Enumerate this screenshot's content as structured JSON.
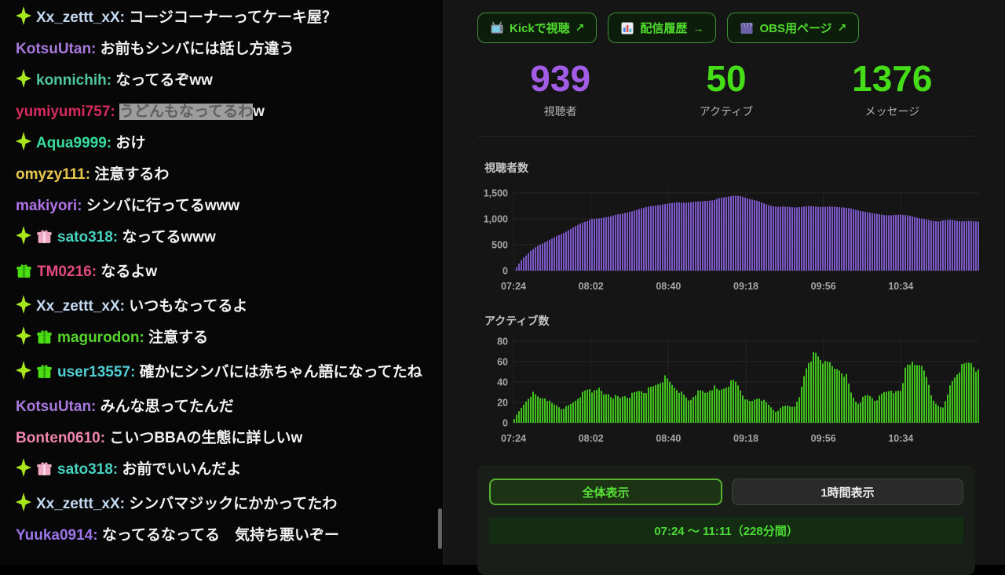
{
  "chat": {
    "messages": [
      {
        "badges": [
          "diamond"
        ],
        "name": "Xx_zettt_xX",
        "color": "#c3d9f2",
        "text": "コージコーナーってケーキ屋？"
      },
      {
        "badges": [],
        "name": "KotsuUtan",
        "color": "#a97ade",
        "text": "お前もシンバには話し方違う"
      },
      {
        "badges": [
          "diamond"
        ],
        "name": "konnichih",
        "color": "#4fc7a2",
        "text": "なってるぞww"
      },
      {
        "badges": [],
        "name": "yumiyumi757",
        "color": "#d62a5e",
        "selected": "うどんもなってるわ",
        "text": "w"
      },
      {
        "badges": [
          "diamond"
        ],
        "name": "Aqua9999",
        "color": "#37dc9e",
        "text": "おけ"
      },
      {
        "badges": [],
        "name": "omyzy111",
        "color": "#e9c94d",
        "text": "注意するわ"
      },
      {
        "badges": [],
        "name": "makiyori",
        "color": "#b273e8",
        "text": "シンバに行ってるwww"
      },
      {
        "badges": [
          "diamond",
          "gift-pink"
        ],
        "name": "sato318",
        "color": "#47d1c0",
        "text": "なってるwww"
      },
      {
        "badges": [
          "gift-green"
        ],
        "name": "TM0216",
        "color": "#e44a82",
        "text": "なるよw"
      },
      {
        "badges": [
          "diamond"
        ],
        "name": "Xx_zettt_xX",
        "color": "#c3d9f2",
        "text": "いつもなってるよ"
      },
      {
        "badges": [
          "diamond",
          "gift-green"
        ],
        "name": "magurodon",
        "color": "#55d429",
        "text": "注意する"
      },
      {
        "badges": [
          "diamond",
          "gift-green"
        ],
        "name": "user13557",
        "color": "#4fd0d4",
        "text": "確かにシンバには赤ちゃん語になってたね"
      },
      {
        "badges": [],
        "name": "KotsuUtan",
        "color": "#a97ade",
        "text": "みんな思ってたんだ"
      },
      {
        "badges": [],
        "name": "Bonten0610",
        "color": "#ef84ad",
        "text": "こいつBBAの生態に詳しいw"
      },
      {
        "badges": [
          "diamond",
          "gift-pink"
        ],
        "name": "sato318",
        "color": "#47d1c0",
        "text": "お前でいいんだよ"
      },
      {
        "badges": [
          "diamond"
        ],
        "name": "Xx_zettt_xX",
        "color": "#c3d9f2",
        "text": "シンバマジックにかかってたわ"
      },
      {
        "badges": [],
        "name": "Yuuka0914",
        "color": "#9d74e8",
        "text": "なってるなってる　気持ち悪いぞー"
      }
    ],
    "badge_colors": {
      "diamond": "#a6e71b",
      "gift_pink": "#f2a9c6",
      "gift_green": "#4ae014"
    }
  },
  "header_buttons": [
    {
      "icon": "tv-icon",
      "label": "Kickで視聴",
      "arrow": "↗"
    },
    {
      "icon": "bar-chart-icon",
      "label": "配信履歴",
      "arrow": "→"
    },
    {
      "icon": "clapperboard-icon",
      "label": "OBS用ページ",
      "arrow": "↗"
    }
  ],
  "stats": [
    {
      "value": "939",
      "label": "視聴者",
      "color": "#a25ce6"
    },
    {
      "value": "50",
      "label": "アクティブ",
      "color": "#44dd18"
    },
    {
      "value": "1376",
      "label": "メッセージ",
      "color": "#44dd18"
    }
  ],
  "chart_data": [
    {
      "type": "bar",
      "title": "視聴者数",
      "bar_color": "#7c57c8",
      "ylim": [
        0,
        1500
      ],
      "yticks": [
        0,
        500,
        1000,
        1500
      ],
      "ytick_labels": [
        "0",
        "500",
        "1,000",
        "1,500"
      ],
      "xtick_labels": [
        "07:24",
        "08:02",
        "08:40",
        "09:18",
        "09:56",
        "10:34"
      ],
      "xtick_minutes": [
        0,
        38,
        76,
        114,
        152,
        190
      ],
      "x_total_minutes": 228,
      "points": [
        [
          0,
          0
        ],
        [
          2,
          120
        ],
        [
          4,
          230
        ],
        [
          6,
          300
        ],
        [
          8,
          380
        ],
        [
          10,
          440
        ],
        [
          12,
          490
        ],
        [
          15,
          545
        ],
        [
          18,
          610
        ],
        [
          21,
          670
        ],
        [
          24,
          720
        ],
        [
          27,
          790
        ],
        [
          30,
          860
        ],
        [
          33,
          920
        ],
        [
          36,
          960
        ],
        [
          38,
          1000
        ],
        [
          42,
          1010
        ],
        [
          46,
          1040
        ],
        [
          50,
          1080
        ],
        [
          54,
          1110
        ],
        [
          58,
          1150
        ],
        [
          62,
          1200
        ],
        [
          66,
          1240
        ],
        [
          70,
          1260
        ],
        [
          73,
          1280
        ],
        [
          76,
          1300
        ],
        [
          80,
          1320
        ],
        [
          84,
          1310
        ],
        [
          88,
          1330
        ],
        [
          92,
          1340
        ],
        [
          95,
          1350
        ],
        [
          98,
          1360
        ],
        [
          100,
          1400
        ],
        [
          102,
          1410
        ],
        [
          105,
          1430
        ],
        [
          108,
          1450
        ],
        [
          111,
          1440
        ],
        [
          114,
          1400
        ],
        [
          117,
          1370
        ],
        [
          120,
          1340
        ],
        [
          123,
          1290
        ],
        [
          126,
          1250
        ],
        [
          129,
          1230
        ],
        [
          132,
          1240
        ],
        [
          135,
          1230
        ],
        [
          138,
          1220
        ],
        [
          141,
          1230
        ],
        [
          144,
          1250
        ],
        [
          147,
          1240
        ],
        [
          150,
          1230
        ],
        [
          152,
          1230
        ],
        [
          155,
          1240
        ],
        [
          158,
          1230
        ],
        [
          161,
          1220
        ],
        [
          164,
          1210
        ],
        [
          167,
          1180
        ],
        [
          170,
          1150
        ],
        [
          173,
          1130
        ],
        [
          176,
          1110
        ],
        [
          179,
          1090
        ],
        [
          182,
          1070
        ],
        [
          185,
          1070
        ],
        [
          188,
          1080
        ],
        [
          190,
          1080
        ],
        [
          193,
          1070
        ],
        [
          196,
          1040
        ],
        [
          199,
          1010
        ],
        [
          202,
          990
        ],
        [
          205,
          960
        ],
        [
          208,
          950
        ],
        [
          211,
          975
        ],
        [
          214,
          985
        ],
        [
          217,
          960
        ],
        [
          220,
          950
        ],
        [
          223,
          960
        ],
        [
          226,
          950
        ],
        [
          228,
          945
        ]
      ]
    },
    {
      "type": "bar",
      "title": "アクティブ数",
      "bar_color": "#41c11e",
      "ylim": [
        0,
        80
      ],
      "yticks": [
        0,
        20,
        40,
        60,
        80
      ],
      "ytick_labels": [
        "0",
        "20",
        "40",
        "60",
        "80"
      ],
      "xtick_labels": [
        "07:24",
        "08:02",
        "08:40",
        "09:18",
        "09:56",
        "10:34"
      ],
      "xtick_minutes": [
        0,
        38,
        76,
        114,
        152,
        190
      ],
      "x_total_minutes": 228,
      "points": [
        [
          0,
          4
        ],
        [
          2,
          10
        ],
        [
          4,
          16
        ],
        [
          6,
          22
        ],
        [
          8,
          27
        ],
        [
          9,
          29
        ],
        [
          11,
          26
        ],
        [
          13,
          24
        ],
        [
          15,
          25
        ],
        [
          17,
          21
        ],
        [
          19,
          18
        ],
        [
          21,
          17
        ],
        [
          23,
          14
        ],
        [
          25,
          15
        ],
        [
          27,
          17
        ],
        [
          29,
          20
        ],
        [
          31,
          24
        ],
        [
          33,
          28
        ],
        [
          35,
          31
        ],
        [
          37,
          33
        ],
        [
          38,
          30
        ],
        [
          40,
          35
        ],
        [
          42,
          32
        ],
        [
          44,
          27
        ],
        [
          46,
          29
        ],
        [
          48,
          25
        ],
        [
          50,
          26
        ],
        [
          52,
          24
        ],
        [
          54,
          27
        ],
        [
          56,
          25
        ],
        [
          58,
          28
        ],
        [
          60,
          30
        ],
        [
          62,
          32
        ],
        [
          64,
          30
        ],
        [
          66,
          33
        ],
        [
          68,
          35
        ],
        [
          70,
          38
        ],
        [
          72,
          41
        ],
        [
          74,
          44
        ],
        [
          76,
          40
        ],
        [
          78,
          36
        ],
        [
          80,
          33
        ],
        [
          82,
          29
        ],
        [
          84,
          25
        ],
        [
          86,
          21
        ],
        [
          88,
          27
        ],
        [
          90,
          30
        ],
        [
          92,
          31
        ],
        [
          94,
          29
        ],
        [
          96,
          33
        ],
        [
          98,
          35
        ],
        [
          100,
          31
        ],
        [
          102,
          33
        ],
        [
          104,
          36
        ],
        [
          106,
          39
        ],
        [
          108,
          41
        ],
        [
          110,
          36
        ],
        [
          112,
          28
        ],
        [
          114,
          22
        ],
        [
          116,
          20
        ],
        [
          118,
          23
        ],
        [
          120,
          25
        ],
        [
          122,
          22
        ],
        [
          124,
          19
        ],
        [
          126,
          15
        ],
        [
          128,
          11
        ],
        [
          130,
          13
        ],
        [
          132,
          16
        ],
        [
          134,
          17
        ],
        [
          136,
          16
        ],
        [
          138,
          17
        ],
        [
          140,
          25
        ],
        [
          142,
          45
        ],
        [
          144,
          60
        ],
        [
          146,
          65
        ],
        [
          148,
          66
        ],
        [
          150,
          62
        ],
        [
          152,
          58
        ],
        [
          153,
          68
        ],
        [
          155,
          55
        ],
        [
          157,
          52
        ],
        [
          159,
          53
        ],
        [
          161,
          50
        ],
        [
          163,
          45
        ],
        [
          165,
          30
        ],
        [
          167,
          22
        ],
        [
          169,
          19
        ],
        [
          171,
          24
        ],
        [
          173,
          27
        ],
        [
          175,
          26
        ],
        [
          177,
          22
        ],
        [
          179,
          25
        ],
        [
          181,
          29
        ],
        [
          183,
          31
        ],
        [
          185,
          33
        ],
        [
          187,
          29
        ],
        [
          189,
          31
        ],
        [
          190,
          30
        ],
        [
          192,
          58
        ],
        [
          194,
          61
        ],
        [
          196,
          54
        ],
        [
          198,
          56
        ],
        [
          200,
          57
        ],
        [
          202,
          50
        ],
        [
          204,
          28
        ],
        [
          206,
          20
        ],
        [
          208,
          17
        ],
        [
          210,
          15
        ],
        [
          212,
          22
        ],
        [
          214,
          38
        ],
        [
          216,
          45
        ],
        [
          218,
          52
        ],
        [
          220,
          55
        ],
        [
          222,
          58
        ],
        [
          224,
          60
        ],
        [
          226,
          55
        ],
        [
          228,
          48
        ]
      ]
    }
  ],
  "footer": {
    "view_all_label": "全体表示",
    "view_hour_label": "1時間表示",
    "range_label": "07:24 ～ 11:11（228分間）"
  }
}
